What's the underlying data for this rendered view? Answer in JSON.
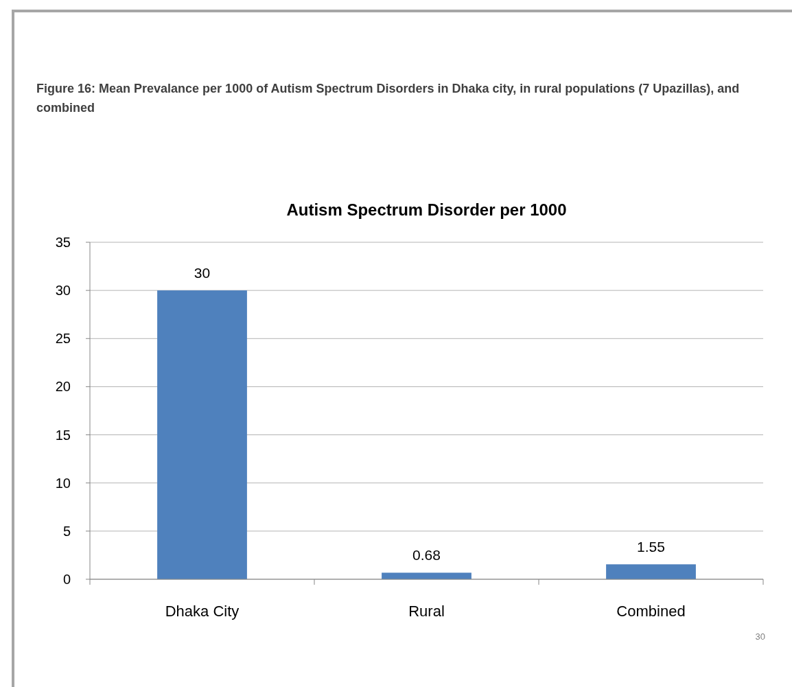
{
  "chart_data": {
    "type": "bar",
    "title": "Figure 16: Mean Prevalance per 1000 of Autism Spectrum Disorders in Dhaka city, in rural populations (7 Upazillas), and combined",
    "subtitle": "Autism Spectrum Disorder per 1000",
    "categories": [
      "Dhaka City",
      "Rural",
      "Combined"
    ],
    "values": [
      30,
      0.68,
      1.55
    ],
    "color": "#4f81bd",
    "ylim": [
      0,
      35
    ],
    "yticks": [
      0,
      5,
      10,
      15,
      20,
      25,
      30,
      35
    ],
    "grid": "y",
    "data_labels": true,
    "annotations": [
      "30"
    ]
  }
}
